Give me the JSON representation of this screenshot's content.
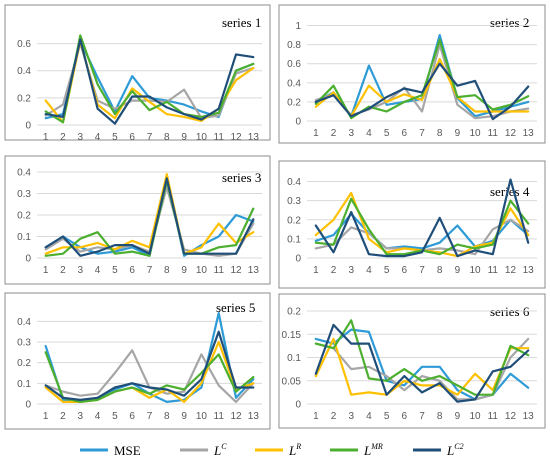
{
  "chart_data": [
    {
      "type": "line",
      "title": "series 1",
      "x": [
        1,
        2,
        3,
        4,
        5,
        6,
        7,
        8,
        9,
        10,
        11,
        12,
        13
      ],
      "ylim": [
        0,
        0.7
      ],
      "yticks": [
        "0",
        "0.2",
        "0.4",
        "0.6"
      ],
      "ytick_values": [
        0,
        0.2,
        0.4,
        0.6
      ],
      "grid": true,
      "series": [
        {
          "name": "MSE",
          "values": [
            0.05,
            0.08,
            0.62,
            0.35,
            0.1,
            0.36,
            0.2,
            0.18,
            0.15,
            0.1,
            0.06,
            0.4,
            0.45
          ]
        },
        {
          "name": "L^C",
          "values": [
            0.07,
            0.15,
            0.6,
            0.18,
            0.12,
            0.18,
            0.18,
            0.17,
            0.26,
            0.05,
            0.07,
            0.38,
            0.42
          ]
        },
        {
          "name": "L^R",
          "values": [
            0.18,
            0.02,
            0.62,
            0.15,
            0.05,
            0.27,
            0.17,
            0.08,
            0.06,
            0.03,
            0.12,
            0.33,
            0.42
          ]
        },
        {
          "name": "L^MR",
          "values": [
            0.1,
            0.02,
            0.66,
            0.3,
            0.08,
            0.25,
            0.11,
            0.17,
            0.08,
            0.06,
            0.09,
            0.4,
            0.45
          ]
        },
        {
          "name": "L^C2",
          "values": [
            0.08,
            0.06,
            0.63,
            0.12,
            0.01,
            0.21,
            0.21,
            0.13,
            0.08,
            0.04,
            0.12,
            0.52,
            0.5
          ]
        }
      ]
    },
    {
      "type": "line",
      "title": "series 2",
      "x": [
        1,
        2,
        3,
        4,
        5,
        6,
        7,
        8,
        9,
        10,
        11,
        12,
        13
      ],
      "ylim": [
        0,
        1.1
      ],
      "yticks": [
        "0",
        "0.2",
        "0.4",
        "0.6",
        "0.8",
        "1"
      ],
      "ytick_values": [
        0,
        0.2,
        0.4,
        0.6,
        0.8,
        1
      ],
      "grid": true,
      "series": [
        {
          "name": "MSE",
          "values": [
            0.2,
            0.3,
            0.05,
            0.58,
            0.17,
            0.2,
            0.23,
            0.9,
            0.24,
            0.05,
            0.1,
            0.15,
            0.2
          ]
        },
        {
          "name": "L^C",
          "values": [
            0.22,
            0.28,
            0.06,
            0.12,
            0.2,
            0.35,
            0.1,
            0.8,
            0.17,
            0.03,
            0.05,
            0.1,
            0.13
          ]
        },
        {
          "name": "L^R",
          "values": [
            0.15,
            0.3,
            0.05,
            0.37,
            0.2,
            0.28,
            0.22,
            0.65,
            0.25,
            0.1,
            0.1,
            0.1,
            0.1
          ]
        },
        {
          "name": "L^MR",
          "values": [
            0.18,
            0.37,
            0.03,
            0.15,
            0.1,
            0.2,
            0.27,
            0.85,
            0.25,
            0.27,
            0.12,
            0.17,
            0.26
          ]
        },
        {
          "name": "L^C2",
          "values": [
            0.2,
            0.27,
            0.05,
            0.13,
            0.25,
            0.34,
            0.3,
            0.6,
            0.37,
            0.42,
            0.02,
            0.15,
            0.36
          ]
        }
      ]
    },
    {
      "type": "line",
      "title": "series 3",
      "x": [
        1,
        2,
        3,
        4,
        5,
        6,
        7,
        8,
        9,
        10,
        11,
        12,
        13
      ],
      "ylim": [
        0,
        0.4
      ],
      "yticks": [
        "0",
        "0.1",
        "0.2",
        "0.3",
        "0.4"
      ],
      "ytick_values": [
        0,
        0.1,
        0.2,
        0.3,
        0.4
      ],
      "grid": true,
      "series": [
        {
          "name": "MSE",
          "values": [
            0.05,
            0.1,
            0.05,
            0.02,
            0.03,
            0.05,
            0.01,
            0.37,
            0.01,
            0.06,
            0.1,
            0.2,
            0.17
          ]
        },
        {
          "name": "L^C",
          "values": [
            0.04,
            0.09,
            0.03,
            0.05,
            0.04,
            0.06,
            0.03,
            0.33,
            0.04,
            0.02,
            0.01,
            0.02,
            0.16
          ]
        },
        {
          "name": "L^R",
          "values": [
            0.02,
            0.05,
            0.05,
            0.07,
            0.04,
            0.08,
            0.05,
            0.39,
            0.02,
            0.05,
            0.16,
            0.07,
            0.12
          ]
        },
        {
          "name": "L^MR",
          "values": [
            0.01,
            0.02,
            0.09,
            0.12,
            0.02,
            0.03,
            0.01,
            0.36,
            0.02,
            0.02,
            0.05,
            0.06,
            0.23
          ]
        },
        {
          "name": "L^C2",
          "values": [
            0.05,
            0.1,
            0.01,
            0.03,
            0.06,
            0.06,
            0.02,
            0.37,
            0.02,
            0.02,
            0.02,
            0.02,
            0.18
          ]
        }
      ]
    },
    {
      "type": "line",
      "title": "series 4",
      "x": [
        1,
        2,
        3,
        4,
        5,
        6,
        7,
        8,
        9,
        10,
        11,
        12,
        13
      ],
      "ylim": [
        0,
        0.45
      ],
      "yticks": [
        "0",
        "0.1",
        "0.2",
        "0.3",
        "0.4"
      ],
      "ytick_values": [
        0,
        0.1,
        0.2,
        0.3,
        0.4
      ],
      "grid": true,
      "series": [
        {
          "name": "MSE",
          "values": [
            0.09,
            0.12,
            0.23,
            0.13,
            0.05,
            0.06,
            0.05,
            0.08,
            0.17,
            0.06,
            0.09,
            0.2,
            0.12
          ]
        },
        {
          "name": "L^C",
          "values": [
            0.05,
            0.07,
            0.16,
            0.13,
            0.05,
            0.05,
            0.04,
            0.05,
            0.04,
            0.02,
            0.15,
            0.2,
            0.14
          ]
        },
        {
          "name": "L^R",
          "values": [
            0.12,
            0.2,
            0.34,
            0.1,
            0.03,
            0.05,
            0.04,
            0.03,
            0.01,
            0.06,
            0.08,
            0.26,
            0.12
          ]
        },
        {
          "name": "L^MR",
          "values": [
            0.08,
            0.07,
            0.31,
            0.15,
            0.02,
            0.02,
            0.04,
            0.02,
            0.07,
            0.05,
            0.07,
            0.3,
            0.18
          ]
        },
        {
          "name": "L^C2",
          "values": [
            0.17,
            0.03,
            0.24,
            0.02,
            0.01,
            0.01,
            0.03,
            0.21,
            0.01,
            0.04,
            0.02,
            0.41,
            0.08
          ]
        }
      ]
    },
    {
      "type": "line",
      "title": "series 5",
      "x": [
        1,
        2,
        3,
        4,
        5,
        6,
        7,
        8,
        9,
        10,
        11,
        12,
        13
      ],
      "ylim": [
        0,
        0.45
      ],
      "yticks": [
        "0",
        "0.1",
        "0.2",
        "0.3",
        "0.4"
      ],
      "ytick_values": [
        0,
        0.1,
        0.2,
        0.3,
        0.4
      ],
      "grid": true,
      "series": [
        {
          "name": "MSE",
          "values": [
            0.28,
            0.02,
            0.01,
            0.03,
            0.07,
            0.1,
            0.05,
            0.01,
            0.02,
            0.08,
            0.44,
            0.03,
            0.12
          ]
        },
        {
          "name": "L^C",
          "values": [
            0.09,
            0.06,
            0.04,
            0.05,
            0.15,
            0.26,
            0.08,
            0.05,
            0.06,
            0.24,
            0.09,
            0.01,
            0.1
          ]
        },
        {
          "name": "L^R",
          "values": [
            0.08,
            0.01,
            0.01,
            0.02,
            0.06,
            0.08,
            0.03,
            0.07,
            0.01,
            0.1,
            0.3,
            0.07,
            0.1
          ]
        },
        {
          "name": "L^MR",
          "values": [
            0.25,
            0.03,
            0.01,
            0.02,
            0.06,
            0.08,
            0.05,
            0.09,
            0.07,
            0.15,
            0.24,
            0.06,
            0.13
          ]
        },
        {
          "name": "L^C2",
          "values": [
            0.09,
            0.03,
            0.02,
            0.03,
            0.08,
            0.1,
            0.08,
            0.07,
            0.04,
            0.12,
            0.35,
            0.08,
            0.08
          ]
        }
      ]
    },
    {
      "type": "line",
      "title": "series 6",
      "x": [
        1,
        2,
        3,
        4,
        5,
        6,
        7,
        8,
        9,
        10,
        11,
        12,
        13
      ],
      "ylim": [
        0,
        0.2
      ],
      "yticks": [
        "0",
        "0.05",
        "0.1",
        "0.15",
        "0.2"
      ],
      "ytick_values": [
        0,
        0.05,
        0.1,
        0.15,
        0.2
      ],
      "grid": true,
      "series": [
        {
          "name": "MSE",
          "values": [
            0.14,
            0.13,
            0.16,
            0.155,
            0.05,
            0.04,
            0.08,
            0.08,
            0.03,
            0.01,
            0.02,
            0.065,
            0.035
          ]
        },
        {
          "name": "L^C",
          "values": [
            0.13,
            0.12,
            0.075,
            0.08,
            0.06,
            0.03,
            0.06,
            0.05,
            0.01,
            0.01,
            0.02,
            0.1,
            0.14
          ]
        },
        {
          "name": "L^R",
          "values": [
            0.06,
            0.14,
            0.02,
            0.025,
            0.02,
            0.05,
            0.04,
            0.04,
            0.02,
            0.065,
            0.03,
            0.12,
            0.12
          ]
        },
        {
          "name": "L^MR",
          "values": [
            0.13,
            0.12,
            0.18,
            0.055,
            0.05,
            0.075,
            0.05,
            0.06,
            0.04,
            0.02,
            0.02,
            0.125,
            0.105
          ]
        },
        {
          "name": "L^C2",
          "values": [
            0.065,
            0.17,
            0.13,
            0.13,
            0.02,
            0.06,
            0.025,
            0.045,
            0.005,
            0.01,
            0.07,
            0.08,
            0.115
          ]
        }
      ]
    }
  ],
  "legend": {
    "placement": "bottom",
    "entries": [
      {
        "name": "MSE",
        "base": "MSE",
        "sup": "",
        "color": "#2e9bd6"
      },
      {
        "name": "L^C",
        "base": "L",
        "sup": "C",
        "color": "#a6a6a6"
      },
      {
        "name": "L^R",
        "base": "L",
        "sup": "R",
        "color": "#ffc000"
      },
      {
        "name": "L^MR",
        "base": "L",
        "sup": "MR",
        "color": "#4caf2f"
      },
      {
        "name": "L^C2",
        "base": "L",
        "sup": "C2",
        "color": "#1f4e79"
      }
    ]
  }
}
